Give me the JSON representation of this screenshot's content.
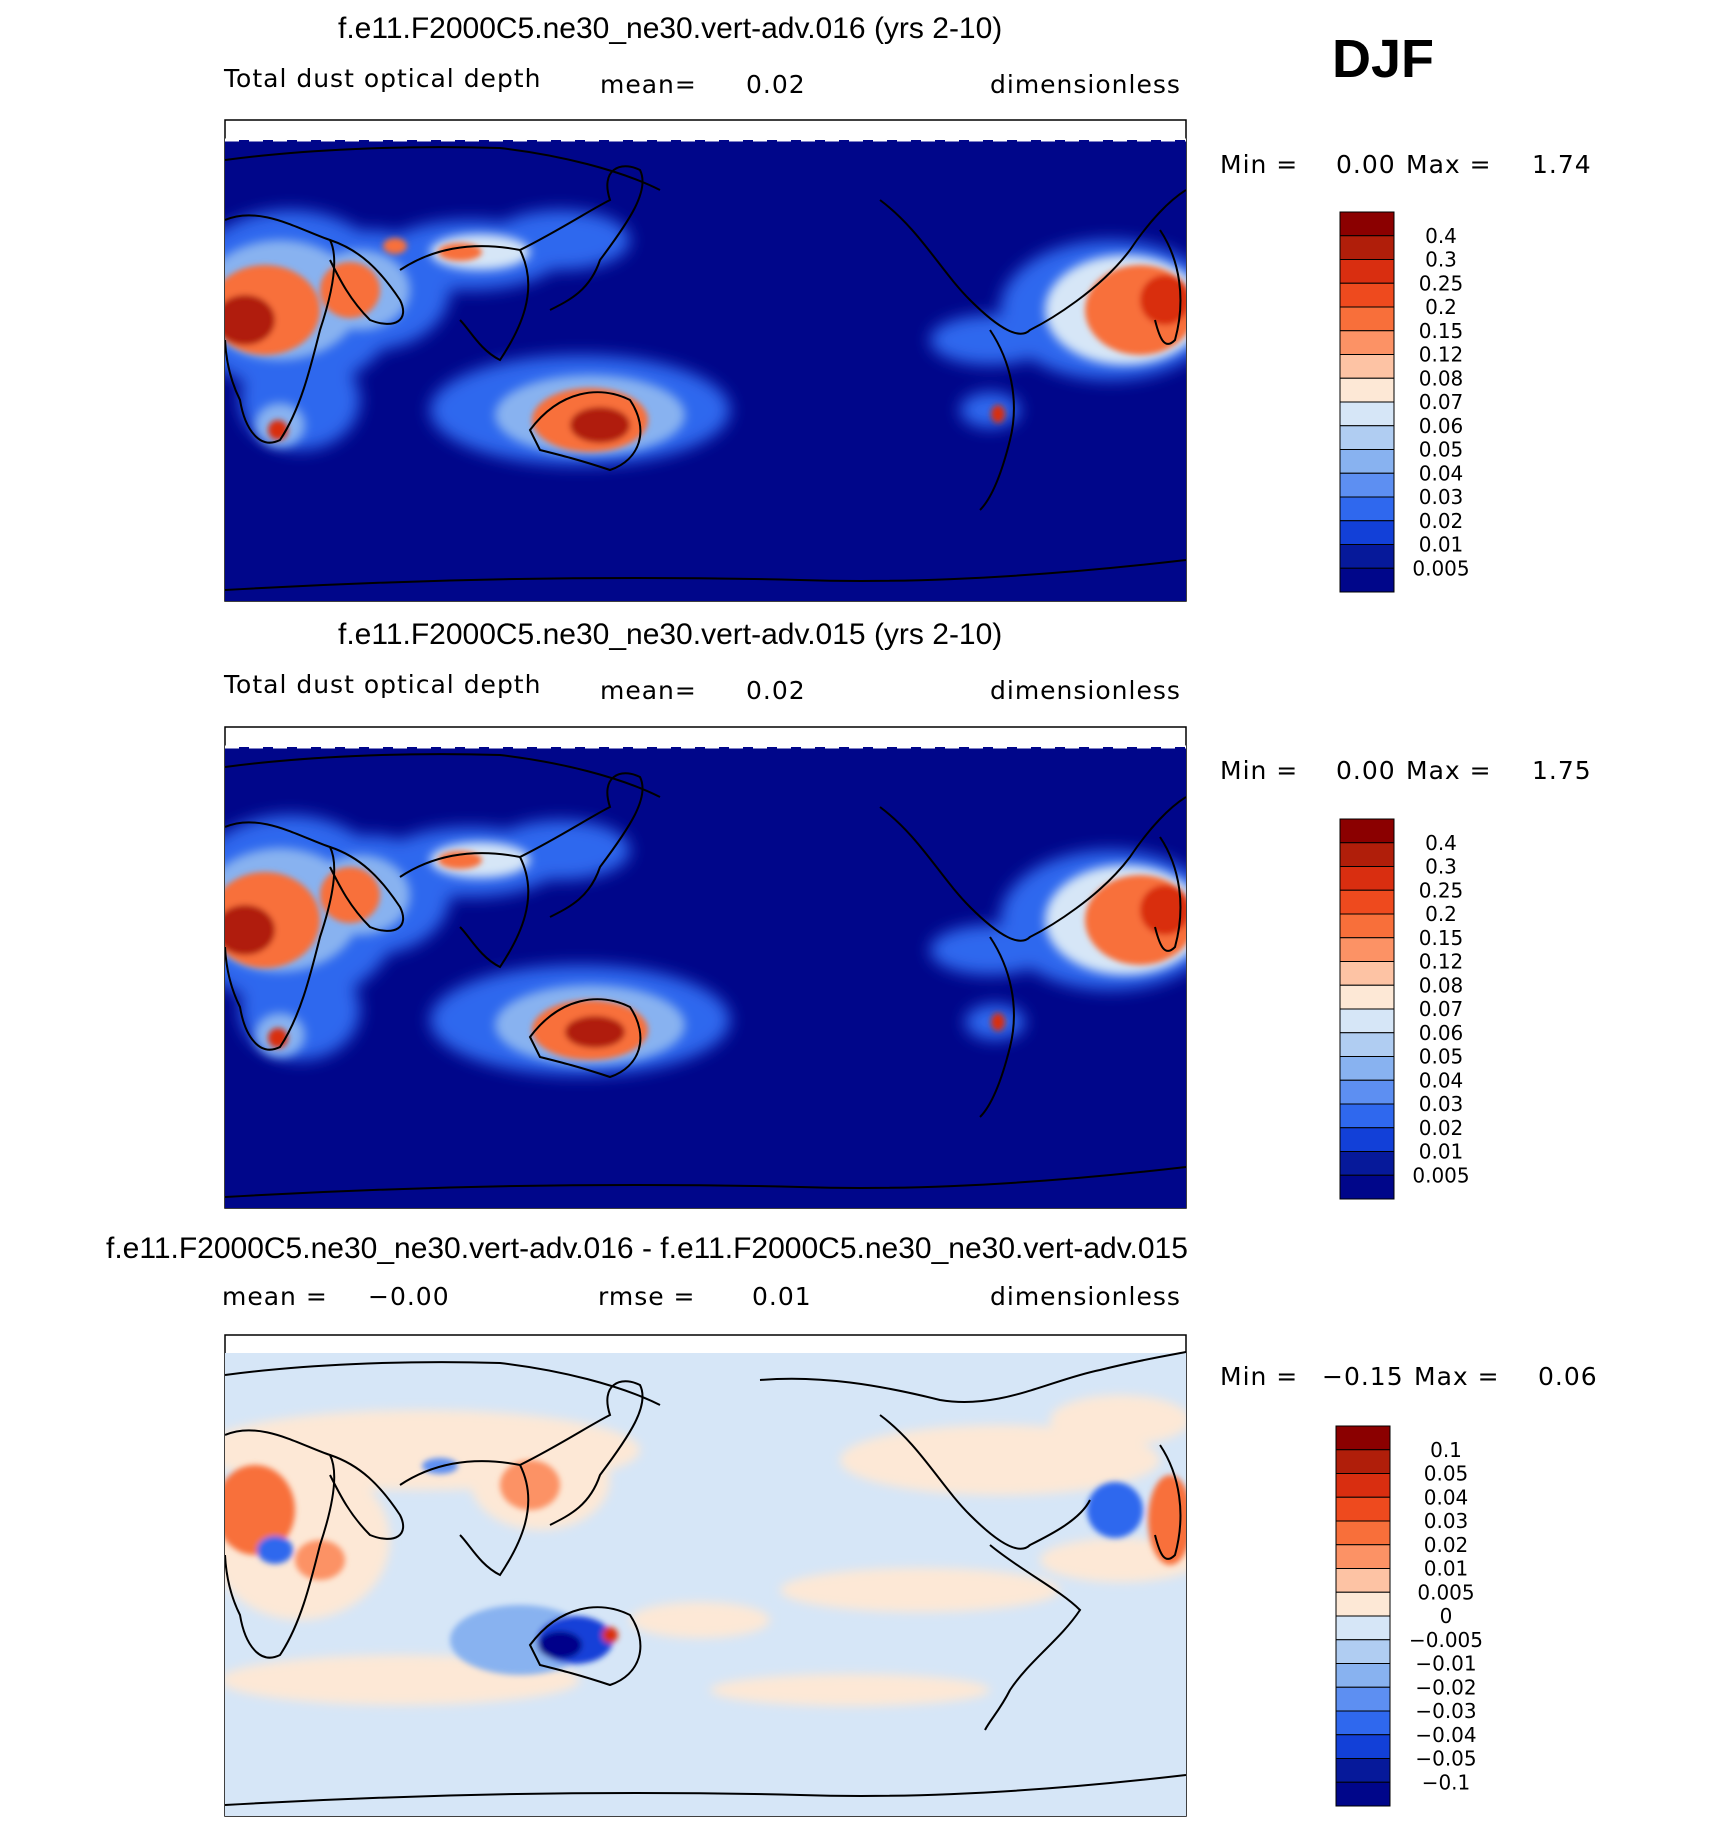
{
  "season": "DJF",
  "panels": [
    {
      "title": "f.e11.F2000C5.ne30_ne30.vert-adv.016 (yrs 2-10)",
      "variable": "Total dust optical depth",
      "mean_label": "mean=",
      "mean_value": "0.02",
      "units": "dimensionless",
      "min_label": "Min =",
      "min_value": "0.00",
      "max_label": "Max =",
      "max_value": "1.74"
    },
    {
      "title": "f.e11.F2000C5.ne30_ne30.vert-adv.015 (yrs 2-10)",
      "variable": "Total dust optical depth",
      "mean_label": "mean=",
      "mean_value": "0.02",
      "units": "dimensionless",
      "min_label": "Min =",
      "min_value": "0.00",
      "max_label": "Max =",
      "max_value": "1.75"
    },
    {
      "title": "f.e11.F2000C5.ne30_ne30.vert-adv.016 - f.e11.F2000C5.ne30_ne30.vert-adv.015",
      "mean_label": "mean =",
      "mean_value": "−0.00",
      "rmse_label": "rmse =",
      "rmse_value": "0.01",
      "units": "dimensionless",
      "min_label": "Min =",
      "min_value": "−0.15",
      "max_label": "Max =",
      "max_value": "0.06"
    }
  ],
  "chart_data": [
    {
      "type": "heatmap",
      "title": "f.e11.F2000C5.ne30_ne30.vert-adv.016 (yrs 2-10)",
      "colorbar_levels": [
        "0.4",
        "0.3",
        "0.25",
        "0.2",
        "0.15",
        "0.12",
        "0.08",
        "0.07",
        "0.06",
        "0.05",
        "0.04",
        "0.03",
        "0.02",
        "0.01",
        "0.005"
      ],
      "colorbar_colors": [
        "#8b0000",
        "#b01e0a",
        "#d92e10",
        "#ee4a1e",
        "#f86f3a",
        "#fc9265",
        "#fdc3a4",
        "#fde8d6",
        "#d6e6f7",
        "#b0cdf2",
        "#88b2f0",
        "#5d8ff2",
        "#2f68ee",
        "#1240d8",
        "#06199a",
        "#00068a"
      ],
      "value_range": [
        0.0,
        1.74
      ],
      "mean": 0.02
    },
    {
      "type": "heatmap",
      "title": "f.e11.F2000C5.ne30_ne30.vert-adv.015 (yrs 2-10)",
      "colorbar_levels": [
        "0.4",
        "0.3",
        "0.25",
        "0.2",
        "0.15",
        "0.12",
        "0.08",
        "0.07",
        "0.06",
        "0.05",
        "0.04",
        "0.03",
        "0.02",
        "0.01",
        "0.005"
      ],
      "colorbar_colors": [
        "#8b0000",
        "#b01e0a",
        "#d92e10",
        "#ee4a1e",
        "#f86f3a",
        "#fc9265",
        "#fdc3a4",
        "#fde8d6",
        "#d6e6f7",
        "#b0cdf2",
        "#88b2f0",
        "#5d8ff2",
        "#2f68ee",
        "#1240d8",
        "#06199a",
        "#00068a"
      ],
      "value_range": [
        0.0,
        1.75
      ],
      "mean": 0.02
    },
    {
      "type": "heatmap",
      "title": "f.e11.F2000C5.ne30_ne30.vert-adv.016 - f.e11.F2000C5.ne30_ne30.vert-adv.015",
      "colorbar_levels": [
        "0.1",
        "0.05",
        "0.04",
        "0.03",
        "0.02",
        "0.01",
        "0.005",
        "0",
        "−0.005",
        "−0.01",
        "−0.02",
        "−0.03",
        "−0.04",
        "−0.05",
        "−0.1"
      ],
      "colorbar_colors": [
        "#8b0000",
        "#b01e0a",
        "#d92e10",
        "#ee4a1e",
        "#f86f3a",
        "#fc9265",
        "#fdc3a4",
        "#fde8d6",
        "#d6e6f7",
        "#b0cdf2",
        "#88b2f0",
        "#5d8ff2",
        "#2f68ee",
        "#1240d8",
        "#06199a",
        "#00068a"
      ],
      "value_range": [
        -0.15,
        0.06
      ],
      "mean": 0.0,
      "rmse": 0.01
    }
  ]
}
